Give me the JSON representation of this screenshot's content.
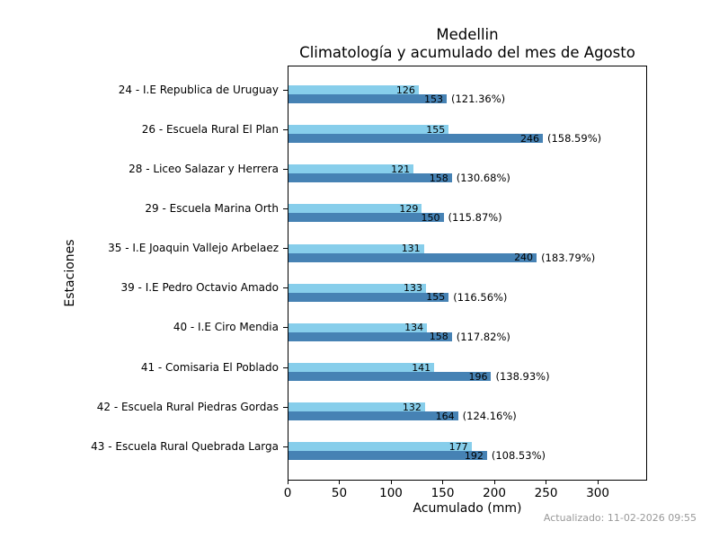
{
  "title": {
    "line1": "Medellin",
    "line2": "Climatología y acumulado del mes de Agosto"
  },
  "axes": {
    "xlabel": "Acumulado (mm)",
    "ylabel": "Estaciones",
    "xticks": [
      0,
      50,
      100,
      150,
      200,
      250,
      300
    ]
  },
  "footer": {
    "updated": "Actualizado: 11-02-2026 09:55"
  },
  "colors": {
    "climatologia": "#87CEEB",
    "acumulado": "#4682B4",
    "axis": "#000000",
    "updated_text": "#999999"
  },
  "chart_data": {
    "type": "bar",
    "orientation": "horizontal",
    "title": "Medellin - Climatología y acumulado del mes de Agosto",
    "xlabel": "Acumulado (mm)",
    "ylabel": "Estaciones",
    "xlim": [
      0,
      346
    ],
    "grid": false,
    "legend": "none",
    "categories": [
      "24 - I.E Republica de Uruguay",
      "26 - Escuela Rural El Plan",
      "28 - Liceo Salazar y Herrera",
      "29 - Escuela Marina Orth",
      "35 - I.E Joaquin Vallejo Arbelaez",
      "39 - I.E Pedro Octavio Amado",
      "40 - I.E Ciro Mendia",
      "41 - Comisaria El Poblado",
      "42 - Escuela Rural Piedras Gordas",
      "43 - Escuela Rural Quebrada Larga"
    ],
    "series": [
      {
        "name": "Climatología",
        "color": "#87CEEB",
        "values": [
          126,
          155,
          121,
          129,
          131,
          133,
          134,
          141,
          132,
          177
        ]
      },
      {
        "name": "Acumulado",
        "color": "#4682B4",
        "values": [
          153,
          246,
          158,
          150,
          240,
          155,
          158,
          196,
          164,
          192
        ]
      }
    ],
    "percent_labels": [
      "(121.36%)",
      "(158.59%)",
      "(130.68%)",
      "(115.87%)",
      "(183.79%)",
      "(116.56%)",
      "(117.82%)",
      "(138.93%)",
      "(124.16%)",
      "(108.53%)"
    ]
  }
}
